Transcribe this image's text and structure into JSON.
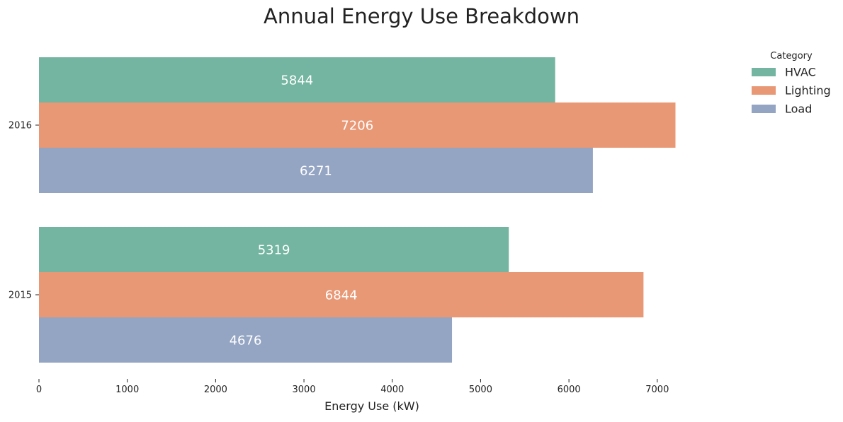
{
  "chart_data": {
    "type": "bar",
    "orientation": "horizontal",
    "title": "Annual Energy Use Breakdown",
    "xlabel": "Energy Use (kW)",
    "ylabel": "",
    "categories": [
      "2016",
      "2015"
    ],
    "series": [
      {
        "name": "HVAC",
        "values": [
          5844,
          5319
        ],
        "color": "#73b5a0"
      },
      {
        "name": "Lighting",
        "values": [
          7206,
          6844
        ],
        "color": "#e89875"
      },
      {
        "name": "Load",
        "values": [
          6271,
          4676
        ],
        "color": "#94a4c3"
      }
    ],
    "xlim": [
      0,
      7210
    ],
    "xticks": [
      0,
      1000,
      2000,
      3000,
      4000,
      5000,
      6000,
      7000
    ],
    "grid": false,
    "legend": {
      "title": "Category",
      "position": "top-right"
    },
    "value_labels": true
  }
}
